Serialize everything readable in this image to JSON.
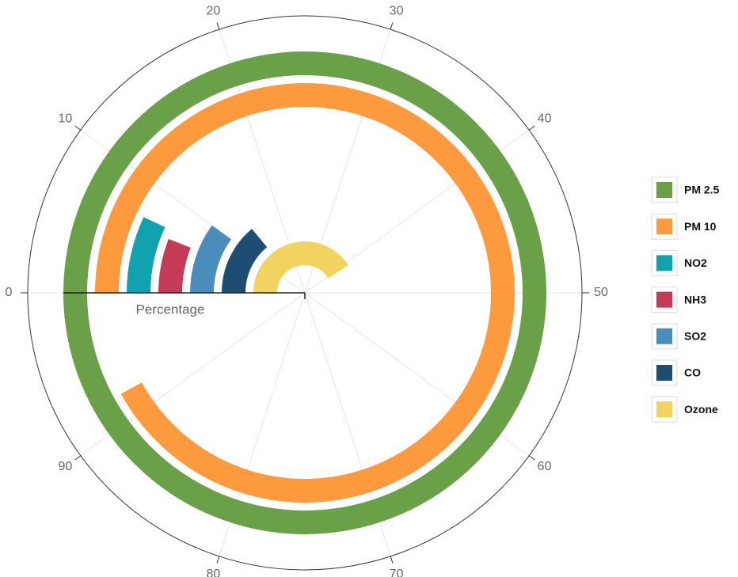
{
  "chart_data": {
    "type": "radialbar",
    "radial_axis_title": "Percentage",
    "categories": [
      "PM 2.5",
      "PM 10",
      "NO2",
      "NH3",
      "SO2",
      "CO",
      "Ozone"
    ],
    "values": [
      100,
      92,
      7,
      6,
      10,
      14,
      41
    ],
    "colors": [
      "#6aa048",
      "#fd9a3d",
      "#10a2ae",
      "#c43a57",
      "#4a8dba",
      "#1f4c73",
      "#f3d35f"
    ],
    "alim": [
      0,
      100
    ],
    "aticks": [
      0,
      10,
      20,
      30,
      40,
      50,
      60,
      70,
      80,
      90
    ],
    "direction": "clockwise",
    "start": "left",
    "grid": true,
    "legend": "right"
  }
}
